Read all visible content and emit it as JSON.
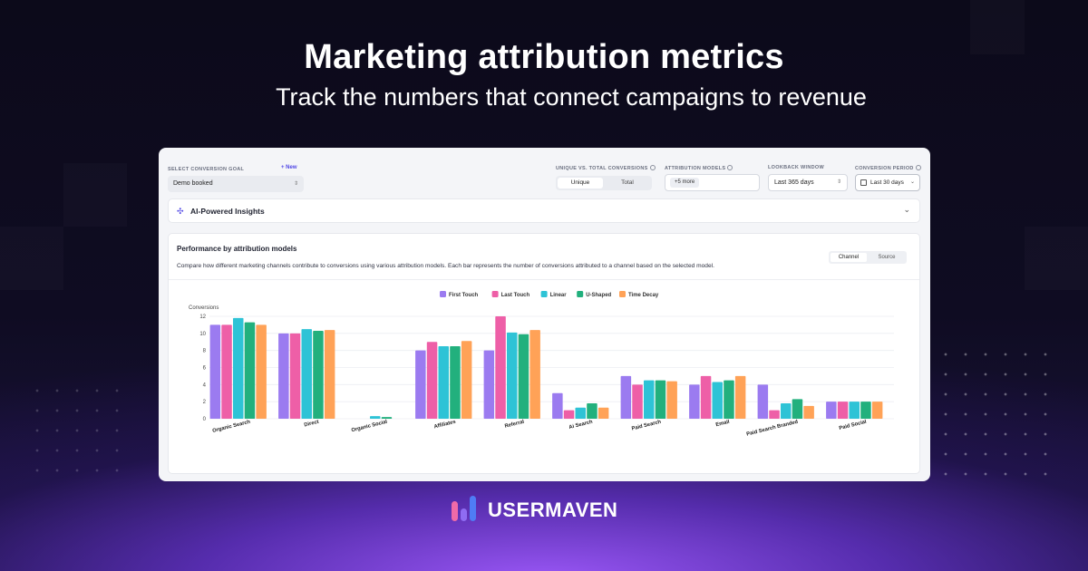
{
  "hero": {
    "title": "Marketing attribution metrics",
    "subtitle": "Track the numbers that connect campaigns to revenue"
  },
  "toolbar": {
    "conversion_goal_label": "SELECT CONVERSION GOAL",
    "new_label": "+ New",
    "conversion_goal_value": "Demo booked",
    "unique_total_label": "UNIQUE VS. TOTAL CONVERSIONS",
    "unique_label": "Unique",
    "total_label": "Total",
    "attribution_models_label": "ATTRIBUTION MODELS",
    "attribution_chip": "+5 more",
    "lookback_label": "LOOKBACK WINDOW",
    "lookback_value": "Last 365 days",
    "period_label": "CONVERSION PERIOD",
    "period_value": "Last 30 days"
  },
  "insights": {
    "label": "AI-Powered Insights"
  },
  "panel": {
    "title": "Performance by attribution models",
    "description": "Compare how different marketing channels contribute to conversions using various attribution models. Each bar represents the number of conversions attributed to a channel based on the selected model.",
    "toggle_channel": "Channel",
    "toggle_source": "Source"
  },
  "chart_data": {
    "type": "bar",
    "ylabel": "Conversions",
    "xlabel": "",
    "ylim": [
      0,
      12
    ],
    "yticks": [
      0,
      2,
      4,
      6,
      8,
      10,
      12
    ],
    "legend_position": "top-center",
    "grid": true,
    "categories": [
      "Organic Search",
      "Direct",
      "Organic Social",
      "Affiliates",
      "Referral",
      "Ai Search",
      "Paid Search",
      "Email",
      "Paid Search Branded",
      "Paid Social"
    ],
    "series": [
      {
        "name": "First Touch",
        "color": "#9b7bf0",
        "values": [
          11,
          10,
          0,
          8,
          8,
          3,
          5,
          4,
          4,
          2
        ]
      },
      {
        "name": "Last Touch",
        "color": "#ee5fa7",
        "values": [
          11,
          10,
          0,
          9,
          12,
          1,
          4,
          5,
          1,
          2
        ]
      },
      {
        "name": "Linear",
        "color": "#2ec3d6",
        "values": [
          11.8,
          10.5,
          0.3,
          8.5,
          10.1,
          1.3,
          4.5,
          4.3,
          1.8,
          2
        ]
      },
      {
        "name": "U-Shaped",
        "color": "#22b07d",
        "values": [
          11.3,
          10.3,
          0.2,
          8.5,
          9.9,
          1.8,
          4.5,
          4.5,
          2.3,
          2
        ]
      },
      {
        "name": "Time Decay",
        "color": "#ffa257",
        "values": [
          11,
          10.4,
          0,
          9.1,
          10.4,
          1.3,
          4.4,
          5,
          1.5,
          2
        ]
      }
    ]
  },
  "brand": {
    "name": "USERMAVEN",
    "colors": [
      "#f06aa8",
      "#8f6cf2",
      "#4f7cf5"
    ]
  }
}
